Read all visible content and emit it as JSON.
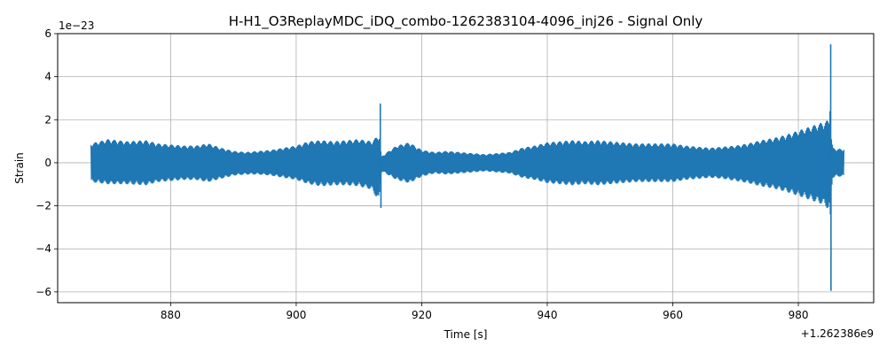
{
  "chart_data": {
    "type": "line",
    "title": "H-H1_O3ReplayMDC_iDQ_combo-1262383104-4096_inj26 - Signal Only",
    "xlabel": "Time [s]",
    "ylabel": "Strain",
    "x_offset_label": "+1.262386e9",
    "y_scale_label": "1e−23",
    "xlim": [
      862,
      992
    ],
    "ylim": [
      -6.5,
      6.0
    ],
    "xticks": [
      880,
      900,
      920,
      940,
      960,
      980
    ],
    "yticks": [
      -6,
      -4,
      -2,
      0,
      2,
      4,
      6
    ],
    "ytick_labels": [
      "−6",
      "−4",
      "−2",
      "0",
      "2",
      "4",
      "6"
    ],
    "grid": true,
    "line_color": "#1f77b4",
    "series": [
      {
        "envelope": {
          "x": [
            867.3,
            870,
            873,
            876,
            878,
            880,
            882,
            884,
            886,
            888,
            890,
            892,
            894,
            896,
            898,
            900,
            902,
            904,
            906,
            908,
            910,
            912,
            913.2,
            913.6,
            914.5,
            916,
            918,
            920,
            922,
            924,
            926,
            928,
            930,
            932,
            934,
            936,
            938,
            940,
            942,
            944,
            946,
            948,
            950,
            952,
            954,
            956,
            958,
            960,
            962,
            964,
            966,
            968,
            970,
            972,
            974,
            976,
            978,
            980,
            982,
            984,
            984.9,
            985.5,
            986,
            987.3
          ],
          "upper": [
            0.9,
            1.1,
            1.0,
            1.05,
            0.9,
            0.85,
            0.8,
            0.8,
            0.9,
            0.7,
            0.55,
            0.5,
            0.55,
            0.6,
            0.7,
            0.8,
            1.0,
            1.05,
            1.0,
            1.05,
            1.1,
            1.0,
            1.3,
            0.3,
            0.5,
            0.8,
            0.95,
            0.6,
            0.5,
            0.55,
            0.5,
            0.45,
            0.4,
            0.45,
            0.5,
            0.7,
            0.8,
            0.95,
            1.0,
            1.05,
            1.0,
            1.05,
            1.0,
            0.95,
            0.9,
            0.9,
            0.9,
            0.9,
            0.8,
            0.75,
            0.7,
            0.75,
            0.8,
            0.9,
            1.05,
            1.15,
            1.3,
            1.5,
            1.7,
            1.9,
            2.0,
            0.7,
            0.65,
            0.65
          ],
          "lower": [
            -0.9,
            -1.0,
            -1.0,
            -1.05,
            -0.9,
            -0.85,
            -0.8,
            -0.8,
            -0.9,
            -0.75,
            -0.6,
            -0.55,
            -0.55,
            -0.6,
            -0.7,
            -0.8,
            -1.0,
            -1.1,
            -1.05,
            -1.05,
            -1.1,
            -1.25,
            -1.8,
            -0.4,
            -0.55,
            -0.8,
            -0.95,
            -0.65,
            -0.5,
            -0.55,
            -0.5,
            -0.45,
            -0.4,
            -0.45,
            -0.5,
            -0.7,
            -0.8,
            -0.95,
            -1.0,
            -1.05,
            -1.0,
            -1.05,
            -1.0,
            -0.95,
            -0.9,
            -0.9,
            -0.9,
            -0.9,
            -0.8,
            -0.75,
            -0.7,
            -0.75,
            -0.85,
            -0.95,
            -1.1,
            -1.2,
            -1.35,
            -1.55,
            -1.75,
            -1.95,
            -2.2,
            -0.7,
            -0.65,
            -0.65
          ]
        },
        "spikes": [
          {
            "x": 913.4,
            "y": 2.75
          },
          {
            "x": 913.5,
            "y": -2.1
          },
          {
            "x": 985.15,
            "y": 5.5
          },
          {
            "x": 985.2,
            "y": -5.95
          },
          {
            "x": 985.05,
            "y": 2.4
          },
          {
            "x": 985.1,
            "y": -2.4
          }
        ]
      }
    ]
  }
}
